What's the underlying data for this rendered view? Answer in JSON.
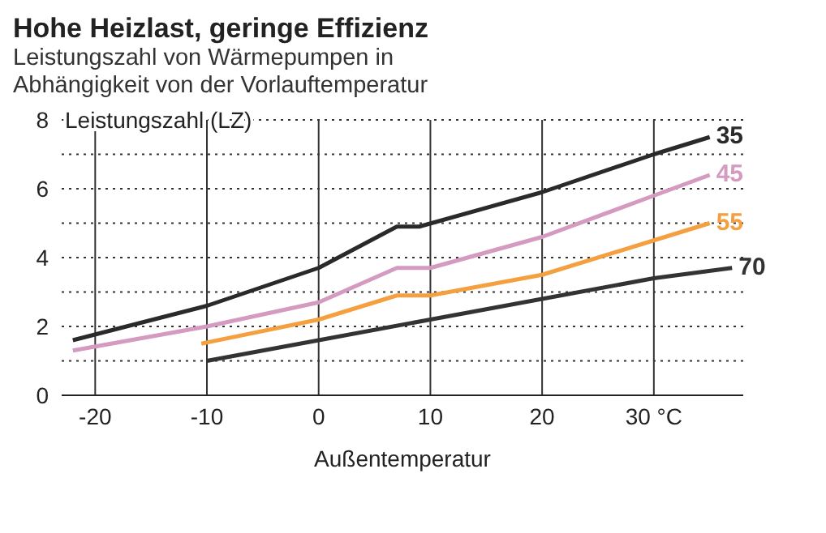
{
  "chart_data": {
    "type": "line",
    "title": "Hohe Heizlast, geringe Effizienz",
    "subtitle": "Leistungszahl von Wärmepumpen in Abhängigkeit von der Vorlauftemperatur",
    "xlabel": "Außentemperatur",
    "ylabel": "Leistungszahl (LZ)",
    "series": [
      {
        "name": "35",
        "color": "#2a2a2a",
        "x": [
          -22,
          -10,
          0,
          7,
          9,
          20,
          30,
          35
        ],
        "values": [
          1.6,
          2.6,
          3.7,
          4.9,
          4.9,
          5.9,
          7.0,
          7.5
        ]
      },
      {
        "name": "45",
        "color": "#d49ac0",
        "x": [
          -22,
          -10,
          0,
          7,
          10,
          20,
          30,
          35
        ],
        "values": [
          1.3,
          2.0,
          2.7,
          3.7,
          3.7,
          4.6,
          5.8,
          6.4
        ]
      },
      {
        "name": "55",
        "color": "#f5a040",
        "x": [
          -10.5,
          0,
          7,
          10,
          20,
          30,
          35
        ],
        "values": [
          1.5,
          2.2,
          2.9,
          2.9,
          3.5,
          4.5,
          5.0
        ]
      },
      {
        "name": "70",
        "color": "#333333",
        "x": [
          -10,
          0,
          10,
          20,
          30,
          37
        ],
        "values": [
          1.0,
          1.6,
          2.2,
          2.8,
          3.4,
          3.7
        ]
      }
    ],
    "xlim": [
      -23,
      38
    ],
    "xticks": [
      -20,
      -10,
      0,
      10,
      20,
      {
        "value": 30,
        "label": "30 °C"
      }
    ],
    "ylim": [
      0,
      8
    ],
    "yticks": [
      0,
      {
        "value": 1,
        "label": null
      },
      2,
      {
        "value": 3,
        "label": null
      },
      4,
      {
        "value": 5,
        "label": null
      },
      6,
      {
        "value": 7,
        "label": null
      },
      8
    ],
    "grid": true,
    "marker": "none",
    "line_style": "solid"
  }
}
